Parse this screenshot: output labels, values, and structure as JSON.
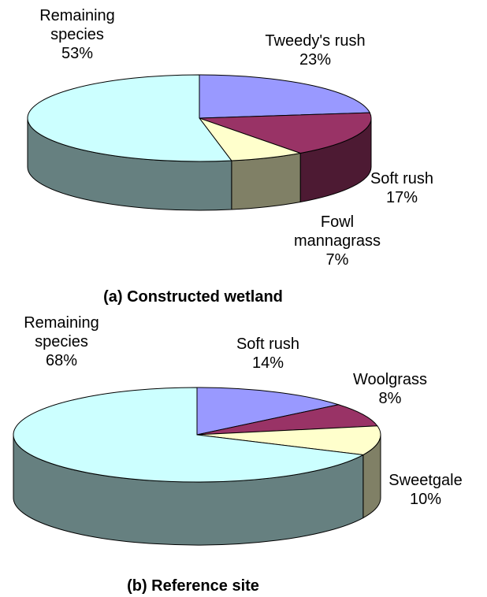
{
  "chart_data": [
    {
      "type": "pie3d",
      "title": "(a) Constructed wetland",
      "categories": [
        "Tweedy's rush",
        "Soft rush",
        "Fowl mannagrass",
        "Remaining species"
      ],
      "values": [
        23,
        17,
        7,
        53
      ],
      "value_labels": [
        "23%",
        "17%",
        "7%",
        "53%"
      ],
      "colors": [
        "#9999ff",
        "#993366",
        "#ffffcc",
        "#ccffff"
      ]
    },
    {
      "type": "pie3d",
      "title": "(b) Reference site",
      "categories": [
        "Soft rush",
        "Woolgrass",
        "Sweetgale",
        "Remaining species"
      ],
      "values": [
        14,
        8,
        10,
        68
      ],
      "value_labels": [
        "14%",
        "8%",
        "10%",
        "68%"
      ],
      "colors": [
        "#9999ff",
        "#993366",
        "#ffffcc",
        "#ccffff"
      ]
    }
  ]
}
